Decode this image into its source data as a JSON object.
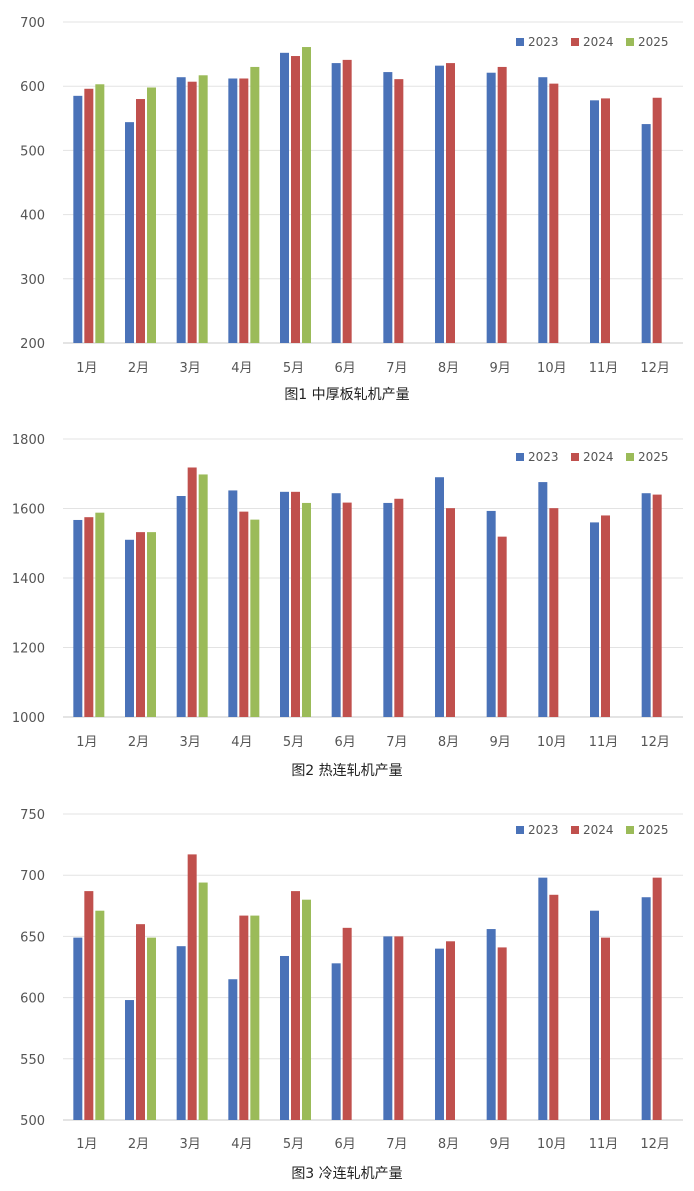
{
  "series_colors": [
    "#4a72b8",
    "#c0504d",
    "#9bbb59"
  ],
  "chart_data": [
    {
      "type": "bar",
      "title": "图1  中厚板轧机产量",
      "categories": [
        "1月",
        "2月",
        "3月",
        "4月",
        "5月",
        "6月",
        "7月",
        "8月",
        "9月",
        "10月",
        "11月",
        "12月"
      ],
      "ylim": [
        200,
        700
      ],
      "yticks": [
        200,
        300,
        400,
        500,
        600,
        700
      ],
      "grid": true,
      "legend": "top-right",
      "series": [
        {
          "name": "2023",
          "values": [
            585,
            544,
            614,
            612,
            652,
            636,
            622,
            632,
            621,
            614,
            578,
            541
          ]
        },
        {
          "name": "2024",
          "values": [
            596,
            580,
            607,
            612,
            647,
            641,
            611,
            636,
            630,
            604,
            581,
            582
          ]
        },
        {
          "name": "2025",
          "values": [
            603,
            598,
            617,
            630,
            661,
            null,
            null,
            null,
            null,
            null,
            null,
            null
          ]
        }
      ]
    },
    {
      "type": "bar",
      "title": "图2  热连轧机产量",
      "categories": [
        "1月",
        "2月",
        "3月",
        "4月",
        "5月",
        "6月",
        "7月",
        "8月",
        "9月",
        "10月",
        "11月",
        "12月"
      ],
      "ylim": [
        1000,
        1800
      ],
      "yticks": [
        1000,
        1200,
        1400,
        1600,
        1800
      ],
      "grid": true,
      "legend": "top-right",
      "series": [
        {
          "name": "2023",
          "values": [
            1567,
            1510,
            1636,
            1652,
            1648,
            1644,
            1616,
            1690,
            1593,
            1676,
            1560,
            1644
          ]
        },
        {
          "name": "2024",
          "values": [
            1575,
            1532,
            1718,
            1591,
            1648,
            1617,
            1628,
            1601,
            1519,
            1601,
            1580,
            1640
          ]
        },
        {
          "name": "2025",
          "values": [
            1588,
            1532,
            1698,
            1568,
            1616,
            null,
            null,
            null,
            null,
            null,
            null,
            null
          ]
        }
      ]
    },
    {
      "type": "bar",
      "title": "图3  冷连轧机产量",
      "categories": [
        "1月",
        "2月",
        "3月",
        "4月",
        "5月",
        "6月",
        "7月",
        "8月",
        "9月",
        "10月",
        "11月",
        "12月"
      ],
      "ylim": [
        500,
        750
      ],
      "yticks": [
        500,
        550,
        600,
        650,
        700,
        750
      ],
      "grid": true,
      "legend": "top-right",
      "series": [
        {
          "name": "2023",
          "values": [
            649,
            598,
            642,
            615,
            634,
            628,
            650,
            640,
            656,
            698,
            671,
            682
          ]
        },
        {
          "name": "2024",
          "values": [
            687,
            660,
            717,
            667,
            687,
            657,
            650,
            646,
            641,
            684,
            649,
            698
          ]
        },
        {
          "name": "2025",
          "values": [
            671,
            649,
            694,
            667,
            680,
            null,
            null,
            null,
            null,
            null,
            null,
            null
          ]
        }
      ]
    }
  ]
}
